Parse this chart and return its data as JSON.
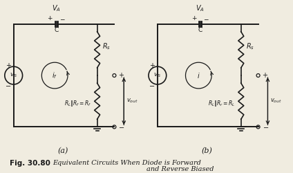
{
  "title": "Fig. 30.80",
  "subtitle1": "Equivalent Circuits When Diode is Forward",
  "subtitle2": "and Reverse Biased",
  "bg_color": "#f0ece0",
  "line_color": "#1a1a1a",
  "text_color": "#1a1a1a"
}
